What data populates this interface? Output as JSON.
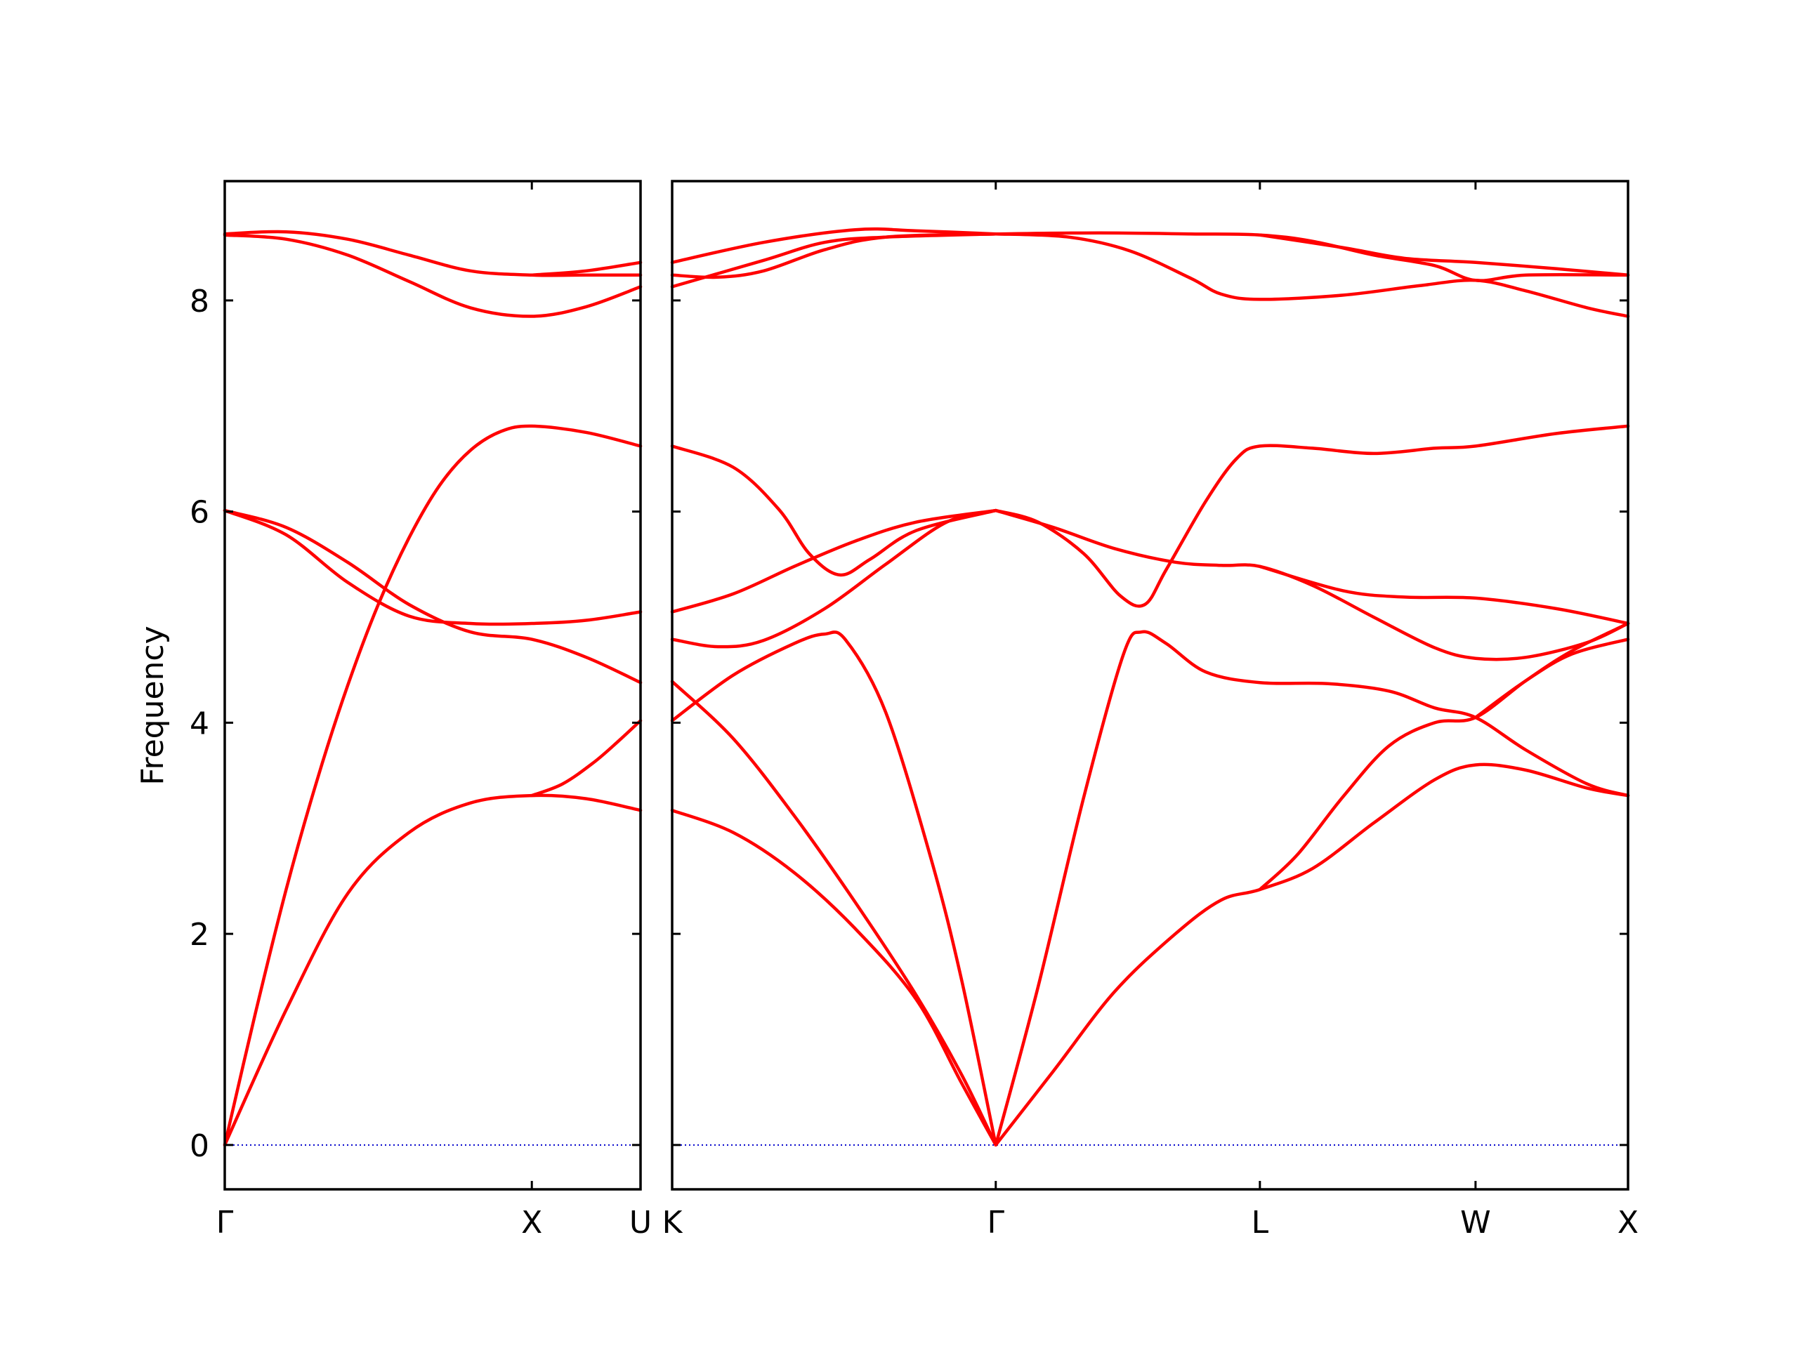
{
  "chart_data": {
    "type": "line",
    "title": "",
    "ylabel": "Frequency",
    "xlabel": "",
    "ylim": [
      -0.42,
      9.13
    ],
    "yticks": [
      0,
      2,
      4,
      6,
      8
    ],
    "grid": false,
    "colors": {
      "bands": "#ff0000",
      "zero": "#0000cc"
    },
    "panels": [
      {
        "id": "left",
        "kpoints": [
          {
            "label": "Γ",
            "x": 0.0
          },
          {
            "label": "X",
            "x": 1.0
          },
          {
            "label": "U",
            "x": 1.354
          }
        ],
        "bands": [
          {
            "points": [
              [
                0,
                0
              ],
              [
                0.2,
                1.28
              ],
              [
                0.4,
                2.38
              ],
              [
                0.6,
                2.96
              ],
              [
                0.8,
                3.24
              ],
              [
                1.0,
                3.31
              ],
              [
                1.177,
                3.28
              ],
              [
                1.354,
                3.17
              ]
            ]
          },
          {
            "points": [
              [
                0,
                0
              ],
              [
                0.1,
                1.25
              ],
              [
                0.2,
                2.42
              ],
              [
                0.3,
                3.45
              ],
              [
                0.4,
                4.35
              ],
              [
                0.5,
                5.12
              ],
              [
                0.6,
                5.75
              ],
              [
                0.7,
                6.25
              ],
              [
                0.8,
                6.58
              ],
              [
                0.9,
                6.76
              ],
              [
                1.0,
                6.81
              ],
              [
                1.177,
                6.75
              ],
              [
                1.354,
                6.62
              ]
            ]
          },
          {
            "points": [
              [
                0,
                6.01
              ],
              [
                0.2,
                5.78
              ],
              [
                0.4,
                5.33
              ],
              [
                0.6,
                5.01
              ],
              [
                0.8,
                4.94
              ],
              [
                1.0,
                4.94
              ],
              [
                1.177,
                4.97
              ],
              [
                1.354,
                5.05
              ]
            ]
          },
          {
            "points": [
              [
                0,
                6.01
              ],
              [
                0.2,
                5.85
              ],
              [
                0.4,
                5.52
              ],
              [
                0.6,
                5.12
              ],
              [
                0.8,
                4.86
              ],
              [
                1.0,
                4.79
              ],
              [
                1.177,
                4.62
              ],
              [
                1.354,
                4.38
              ]
            ]
          },
          {
            "points": [
              [
                0,
                8.62
              ],
              [
                0.2,
                8.58
              ],
              [
                0.4,
                8.43
              ],
              [
                0.6,
                8.18
              ],
              [
                0.8,
                7.93
              ],
              [
                1.0,
                7.85
              ],
              [
                1.177,
                7.94
              ],
              [
                1.354,
                8.13
              ]
            ]
          },
          {
            "points": [
              [
                0,
                8.63
              ],
              [
                0.2,
                8.65
              ],
              [
                0.4,
                8.58
              ],
              [
                0.6,
                8.43
              ],
              [
                0.8,
                8.28
              ],
              [
                1.0,
                8.24
              ],
              [
                1.177,
                8.24
              ],
              [
                1.354,
                8.24
              ]
            ]
          },
          {
            "points": [
              [
                1.0,
                3.31
              ],
              [
                1.1,
                3.42
              ],
              [
                1.2,
                3.62
              ],
              [
                1.28,
                3.82
              ],
              [
                1.354,
                4.02
              ]
            ]
          },
          {
            "points": [
              [
                1.0,
                8.24
              ],
              [
                1.177,
                8.28
              ],
              [
                1.354,
                8.36
              ]
            ]
          }
        ]
      },
      {
        "id": "right",
        "kpoints": [
          {
            "label": "K",
            "x": 0.0
          },
          {
            "label": "Γ",
            "x": 1.061
          },
          {
            "label": "L",
            "x": 1.927
          },
          {
            "label": "W",
            "x": 2.634
          },
          {
            "label": "X",
            "x": 3.134
          }
        ],
        "bands": [
          {
            "points": [
              [
                0,
                3.17
              ],
              [
                0.2,
                2.96
              ],
              [
                0.4,
                2.58
              ],
              [
                0.6,
                2.05
              ],
              [
                0.8,
                1.38
              ],
              [
                0.95,
                0.58
              ],
              [
                1.061,
                0
              ]
            ]
          },
          {
            "points": [
              [
                0,
                4.02
              ],
              [
                0.2,
                4.45
              ],
              [
                0.4,
                4.75
              ],
              [
                0.5,
                4.84
              ],
              [
                0.57,
                4.78
              ],
              [
                0.7,
                4.1
              ],
              [
                0.85,
                2.7
              ],
              [
                0.95,
                1.55
              ],
              [
                1.061,
                0
              ]
            ]
          },
          {
            "points": [
              [
                0,
                4.39
              ],
              [
                0.2,
                3.85
              ],
              [
                0.4,
                3.12
              ],
              [
                0.6,
                2.3
              ],
              [
                0.8,
                1.42
              ],
              [
                0.95,
                0.66
              ],
              [
                1.061,
                0
              ]
            ]
          },
          {
            "points": [
              [
                0,
                4.79
              ],
              [
                0.15,
                4.72
              ],
              [
                0.3,
                4.78
              ],
              [
                0.5,
                5.08
              ],
              [
                0.7,
                5.5
              ],
              [
                0.9,
                5.9
              ],
              [
                1.061,
                6.01
              ]
            ]
          },
          {
            "points": [
              [
                0,
                5.05
              ],
              [
                0.2,
                5.22
              ],
              [
                0.4,
                5.48
              ],
              [
                0.6,
                5.72
              ],
              [
                0.8,
                5.9
              ],
              [
                1.061,
                6.01
              ]
            ]
          },
          {
            "points": [
              [
                0,
                6.62
              ],
              [
                0.2,
                6.42
              ],
              [
                0.35,
                6.02
              ],
              [
                0.45,
                5.6
              ],
              [
                0.55,
                5.4
              ],
              [
                0.65,
                5.55
              ],
              [
                0.8,
                5.82
              ],
              [
                1.061,
                6.01
              ]
            ]
          },
          {
            "points": [
              [
                0,
                8.13
              ],
              [
                0.3,
                8.38
              ],
              [
                0.5,
                8.55
              ],
              [
                0.7,
                8.6
              ],
              [
                1.061,
                8.63
              ]
            ]
          },
          {
            "points": [
              [
                0,
                8.24
              ],
              [
                0.15,
                8.22
              ],
              [
                0.3,
                8.28
              ],
              [
                0.5,
                8.48
              ],
              [
                0.7,
                8.6
              ],
              [
                1.061,
                8.63
              ]
            ]
          },
          {
            "points": [
              [
                0,
                8.36
              ],
              [
                0.3,
                8.55
              ],
              [
                0.6,
                8.67
              ],
              [
                0.8,
                8.66
              ],
              [
                1.061,
                8.63
              ]
            ]
          },
          {
            "points": [
              [
                1.061,
                0
              ],
              [
                1.25,
                0.7
              ],
              [
                1.45,
                1.45
              ],
              [
                1.65,
                2.0
              ],
              [
                1.8,
                2.32
              ],
              [
                1.927,
                2.42
              ],
              [
                2.1,
                2.62
              ],
              [
                2.3,
                3.05
              ],
              [
                2.5,
                3.46
              ],
              [
                2.634,
                3.6
              ],
              [
                2.8,
                3.55
              ],
              [
                3.0,
                3.38
              ],
              [
                3.134,
                3.31
              ]
            ]
          },
          {
            "points": [
              [
                1.061,
                0
              ],
              [
                1.2,
                1.5
              ],
              [
                1.35,
                3.3
              ],
              [
                1.48,
                4.65
              ],
              [
                1.54,
                4.86
              ],
              [
                1.62,
                4.75
              ],
              [
                1.75,
                4.48
              ],
              [
                1.927,
                4.38
              ],
              [
                2.15,
                4.37
              ],
              [
                2.35,
                4.3
              ],
              [
                2.5,
                4.14
              ],
              [
                2.634,
                4.05
              ],
              [
                2.8,
                3.74
              ],
              [
                3.0,
                3.42
              ],
              [
                3.134,
                3.31
              ]
            ]
          },
          {
            "points": [
              [
                1.061,
                6.01
              ],
              [
                1.2,
                5.9
              ],
              [
                1.35,
                5.6
              ],
              [
                1.47,
                5.2
              ],
              [
                1.55,
                5.12
              ],
              [
                1.62,
                5.45
              ],
              [
                1.75,
                6.1
              ],
              [
                1.85,
                6.5
              ],
              [
                1.927,
                6.62
              ],
              [
                2.1,
                6.6
              ],
              [
                2.3,
                6.55
              ],
              [
                2.5,
                6.6
              ],
              [
                2.634,
                6.62
              ],
              [
                2.9,
                6.74
              ],
              [
                3.134,
                6.81
              ]
            ]
          },
          {
            "points": [
              [
                1.061,
                6.01
              ],
              [
                1.25,
                5.85
              ],
              [
                1.45,
                5.65
              ],
              [
                1.65,
                5.52
              ],
              [
                1.8,
                5.49
              ],
              [
                1.927,
                5.48
              ],
              [
                2.1,
                5.3
              ],
              [
                2.3,
                5.0
              ],
              [
                2.5,
                4.71
              ],
              [
                2.634,
                4.61
              ],
              [
                2.8,
                4.62
              ],
              [
                3.0,
                4.76
              ],
              [
                3.134,
                4.94
              ]
            ]
          },
          {
            "points": [
              [
                1.927,
                5.48
              ],
              [
                2.2,
                5.25
              ],
              [
                2.4,
                5.19
              ],
              [
                2.634,
                5.18
              ],
              [
                2.9,
                5.08
              ],
              [
                3.134,
                4.94
              ]
            ]
          },
          {
            "points": [
              [
                1.927,
                2.42
              ],
              [
                2.05,
                2.75
              ],
              [
                2.2,
                3.3
              ],
              [
                2.35,
                3.78
              ],
              [
                2.5,
                4.0
              ],
              [
                2.634,
                4.05
              ],
              [
                2.8,
                4.4
              ],
              [
                2.95,
                4.68
              ],
              [
                3.134,
                4.94
              ]
            ]
          },
          {
            "points": [
              [
                2.634,
                4.05
              ],
              [
                2.8,
                4.4
              ],
              [
                2.95,
                4.65
              ],
              [
                3.134,
                4.79
              ]
            ]
          },
          {
            "points": [
              [
                1.061,
                8.63
              ],
              [
                1.3,
                8.6
              ],
              [
                1.5,
                8.47
              ],
              [
                1.7,
                8.21
              ],
              [
                1.8,
                8.06
              ],
              [
                1.927,
                8.01
              ],
              [
                2.2,
                8.05
              ],
              [
                2.45,
                8.14
              ],
              [
                2.634,
                8.19
              ],
              [
                2.8,
                8.09
              ],
              [
                3.0,
                7.93
              ],
              [
                3.134,
                7.85
              ]
            ]
          },
          {
            "points": [
              [
                1.061,
                8.63
              ],
              [
                1.4,
                8.64
              ],
              [
                1.7,
                8.63
              ],
              [
                1.927,
                8.62
              ],
              [
                2.1,
                8.56
              ],
              [
                2.3,
                8.43
              ],
              [
                2.5,
                8.33
              ],
              [
                2.634,
                8.19
              ],
              [
                2.8,
                8.24
              ],
              [
                3.134,
                8.24
              ]
            ]
          },
          {
            "points": [
              [
                1.927,
                8.62
              ],
              [
                2.2,
                8.5
              ],
              [
                2.4,
                8.4
              ],
              [
                2.634,
                8.36
              ],
              [
                2.9,
                8.3
              ],
              [
                3.134,
                8.24
              ]
            ]
          }
        ]
      }
    ]
  }
}
